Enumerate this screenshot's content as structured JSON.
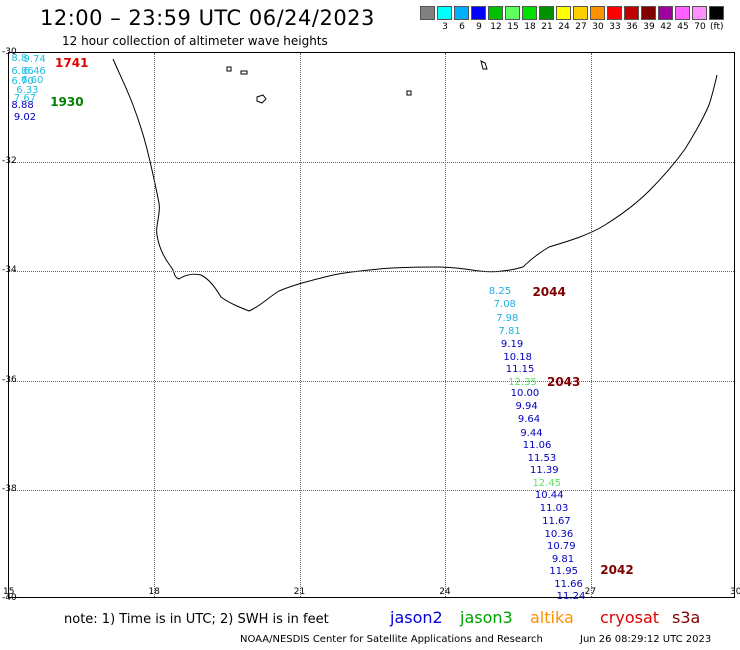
{
  "title": "12:00 – 23:59 UTC 06/24/2023",
  "subtitle": "12 hour collection of altimeter wave heights",
  "legend": {
    "unit": "(ft)",
    "items": [
      {
        "color": "#808080",
        "label": ""
      },
      {
        "color": "#00ffff",
        "label": "3"
      },
      {
        "color": "#00b0ff",
        "label": "6"
      },
      {
        "color": "#0000ff",
        "label": "9"
      },
      {
        "color": "#00c000",
        "label": "12"
      },
      {
        "color": "#60ff60",
        "label": "15"
      },
      {
        "color": "#00e000",
        "label": "18"
      },
      {
        "color": "#009000",
        "label": "21"
      },
      {
        "color": "#ffff00",
        "label": "24"
      },
      {
        "color": "#ffd000",
        "label": "27"
      },
      {
        "color": "#ff9000",
        "label": "30"
      },
      {
        "color": "#ff0000",
        "label": "33"
      },
      {
        "color": "#c00000",
        "label": "36"
      },
      {
        "color": "#800000",
        "label": "39"
      },
      {
        "color": "#a000a0",
        "label": "42"
      },
      {
        "color": "#ff60ff",
        "label": "45"
      },
      {
        "color": "#ff90ff",
        "label": "70"
      },
      {
        "color": "#000000",
        "label": ""
      }
    ]
  },
  "axes": {
    "x_ticks": [
      "15",
      "18",
      "21",
      "24",
      "27",
      "30"
    ],
    "y_ticks": [
      "-30",
      "-32",
      "-34",
      "-36",
      "-38",
      "-40"
    ],
    "xlim": [
      15,
      30
    ],
    "ylim": [
      -40,
      -30
    ]
  },
  "observations": [
    {
      "text": "8.25",
      "color": "#20b0e0",
      "lon": 24.9,
      "lat": -34.26
    },
    {
      "text": "7.08",
      "color": "#20b0e0",
      "lon": 25.0,
      "lat": -34.5
    },
    {
      "text": "7.98",
      "color": "#20b0e0",
      "lon": 25.05,
      "lat": -34.76
    },
    {
      "text": "7.81",
      "color": "#20b0e0",
      "lon": 25.1,
      "lat": -35.0
    },
    {
      "text": "9.19",
      "color": "#0000c0",
      "lon": 25.15,
      "lat": -35.24
    },
    {
      "text": "10.18",
      "color": "#0000c0",
      "lon": 25.2,
      "lat": -35.48
    },
    {
      "text": "11.15",
      "color": "#0000c0",
      "lon": 25.25,
      "lat": -35.7
    },
    {
      "text": "12.35",
      "color": "#60e060",
      "lon": 25.3,
      "lat": -35.94
    },
    {
      "text": "10.00",
      "color": "#0000c0",
      "lon": 25.35,
      "lat": -36.14
    },
    {
      "text": "9.94",
      "color": "#0000c0",
      "lon": 25.45,
      "lat": -36.38
    },
    {
      "text": "9.64",
      "color": "#0000c0",
      "lon": 25.5,
      "lat": -36.62
    },
    {
      "text": "9.44",
      "color": "#0000c0",
      "lon": 25.55,
      "lat": -36.86
    },
    {
      "text": "11.06",
      "color": "#0000c0",
      "lon": 25.6,
      "lat": -37.08
    },
    {
      "text": "11.53",
      "color": "#0000c0",
      "lon": 25.7,
      "lat": -37.32
    },
    {
      "text": "11.39",
      "color": "#0000c0",
      "lon": 25.75,
      "lat": -37.54
    },
    {
      "text": "12.45",
      "color": "#60e060",
      "lon": 25.8,
      "lat": -37.78
    },
    {
      "text": "10.44",
      "color": "#0000c0",
      "lon": 25.85,
      "lat": -38.0
    },
    {
      "text": "11.03",
      "color": "#0000c0",
      "lon": 25.95,
      "lat": -38.24
    },
    {
      "text": "11.67",
      "color": "#0000c0",
      "lon": 26.0,
      "lat": -38.48
    },
    {
      "text": "10.36",
      "color": "#0000c0",
      "lon": 26.05,
      "lat": -38.72
    },
    {
      "text": "10.79",
      "color": "#0000c0",
      "lon": 26.1,
      "lat": -38.94
    },
    {
      "text": "9.81",
      "color": "#0000c0",
      "lon": 26.2,
      "lat": -39.18
    },
    {
      "text": "11.95",
      "color": "#0000c0",
      "lon": 26.15,
      "lat": -39.4
    },
    {
      "text": "11.66",
      "color": "#0000c0",
      "lon": 26.25,
      "lat": -39.64
    },
    {
      "text": "11.24",
      "color": "#0000c0",
      "lon": 26.3,
      "lat": -39.86
    },
    {
      "text": "8.8",
      "color": "#20c0e0",
      "lon": 15.05,
      "lat": -30.0
    },
    {
      "text": "9.74",
      "color": "#20c0e0",
      "lon": 15.3,
      "lat": -30.02
    },
    {
      "text": "6.86",
      "color": "#20c0e0",
      "lon": 15.05,
      "lat": -30.24
    },
    {
      "text": "6.46",
      "color": "#20c0e0",
      "lon": 15.3,
      "lat": -30.24
    },
    {
      "text": "6.70",
      "color": "#20c0e0",
      "lon": 15.05,
      "lat": -30.42
    },
    {
      "text": "6.60",
      "color": "#20c0e0",
      "lon": 15.25,
      "lat": -30.4
    },
    {
      "text": "6.33",
      "color": "#20c0e0",
      "lon": 15.15,
      "lat": -30.58
    },
    {
      "text": "7.67",
      "color": "#20c0e0",
      "lon": 15.1,
      "lat": -30.74
    },
    {
      "text": "8.88",
      "color": "#0000c0",
      "lon": 15.05,
      "lat": -30.86
    },
    {
      "text": "9.02",
      "color": "#0000c0",
      "lon": 15.1,
      "lat": -31.08
    }
  ],
  "times": [
    {
      "text": "1741",
      "color": "#e00000",
      "lon": 15.95,
      "lat": -30.1
    },
    {
      "text": "1930",
      "color": "#008000",
      "lon": 15.85,
      "lat": -30.8
    },
    {
      "text": "2044",
      "color": "#800000",
      "lon": 25.8,
      "lat": -34.28
    },
    {
      "text": "2043",
      "color": "#800000",
      "lon": 26.1,
      "lat": -35.94
    },
    {
      "text": "2042",
      "color": "#800000",
      "lon": 27.2,
      "lat": -39.38
    }
  ],
  "footer": {
    "note": "note:  1) Time is in UTC;  2) SWH is in feet",
    "satellites": [
      {
        "name": "jason2",
        "color": "#0000e0"
      },
      {
        "name": "jason3",
        "color": "#00a000"
      },
      {
        "name": "altika",
        "color": "#ff9000"
      },
      {
        "name": "cryosat",
        "color": "#e00000"
      },
      {
        "name": "s3a",
        "color": "#800000"
      }
    ],
    "credit": "NOAA/NESDIS Center for Satellite Applications and Research",
    "timestamp": "Jun 26 08:29:12 UTC 2023"
  }
}
